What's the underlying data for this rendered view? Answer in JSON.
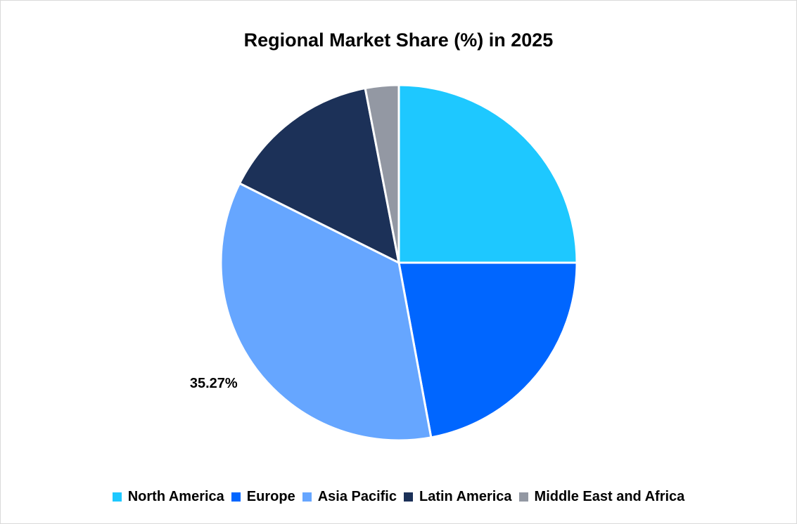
{
  "chart_data": {
    "type": "pie",
    "title": "Regional Market Share (%) in 2025",
    "categories": [
      "North America",
      "Europe",
      "Asia Pacific",
      "Latin America",
      "Middle East and Africa"
    ],
    "values": [
      25.0,
      22.1,
      35.27,
      14.6,
      3.03
    ],
    "colors": [
      "#1ec8ff",
      "#0066ff",
      "#66a6ff",
      "#1c3158",
      "#9398a3"
    ],
    "data_labels": [
      "",
      "",
      "35.27%",
      "",
      ""
    ],
    "legend_position": "bottom",
    "start_angle_deg": 0,
    "direction": "clockwise"
  }
}
